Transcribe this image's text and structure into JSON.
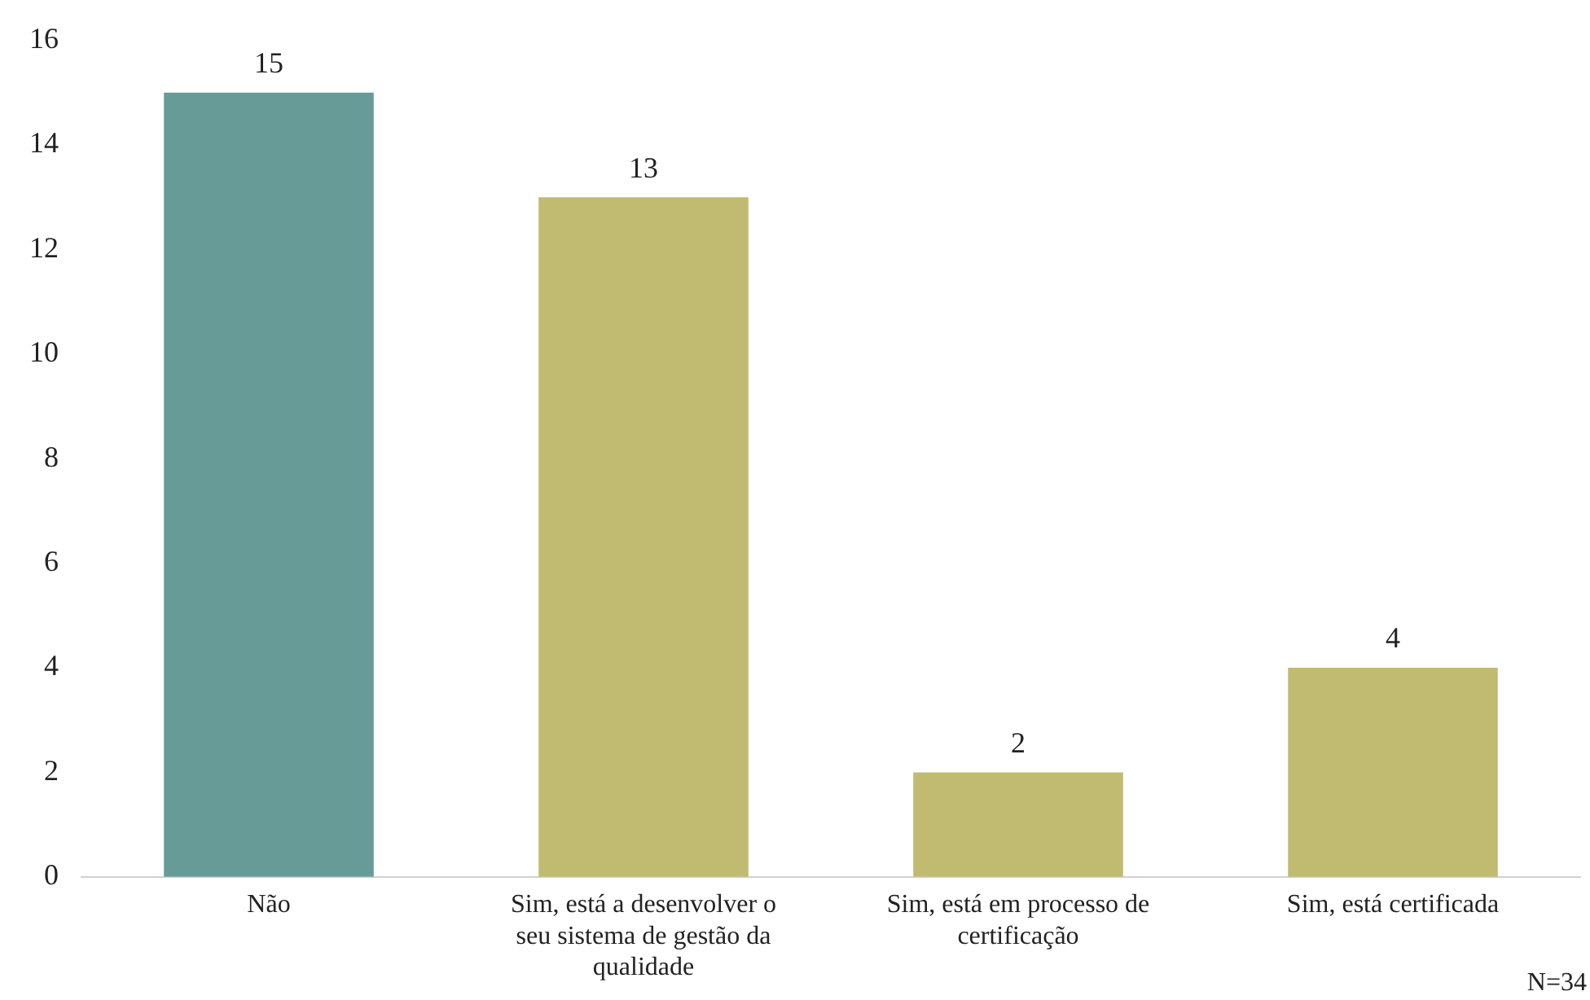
{
  "chart_data": {
    "type": "bar",
    "categories": [
      "Não",
      "Sim, está a desenvolver o seu sistema de gestão da qualidade",
      "Sim, está em processo de certificação",
      "Sim, está certificada"
    ],
    "values": [
      15,
      13,
      2,
      4
    ],
    "colors": [
      "#669b98",
      "#c0bb70",
      "#c0bb70",
      "#c0bb70"
    ],
    "ylim": [
      0,
      16
    ],
    "yticks": [
      0,
      2,
      4,
      6,
      8,
      10,
      12,
      14,
      16
    ],
    "grid": false,
    "legend": false,
    "data_labels": true,
    "annotations": [
      "N=34"
    ]
  }
}
